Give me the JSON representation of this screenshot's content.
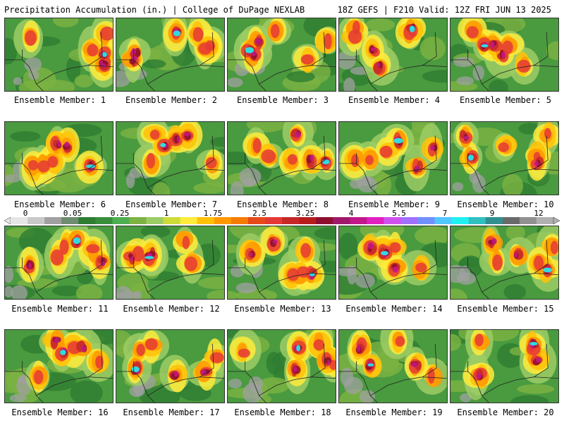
{
  "header": {
    "left": "Precipitation Accumulation (in.) | College of DuPage NEXLAB",
    "right": "18Z GEFS | F210 Valid: 12Z FRI JUN 13 2025"
  },
  "members": [
    {
      "label": "Ensemble Member: 1"
    },
    {
      "label": "Ensemble Member: 2"
    },
    {
      "label": "Ensemble Member: 3"
    },
    {
      "label": "Ensemble Member: 4"
    },
    {
      "label": "Ensemble Member: 5"
    },
    {
      "label": "Ensemble Member: 6"
    },
    {
      "label": "Ensemble Member: 7"
    },
    {
      "label": "Ensemble Member: 8"
    },
    {
      "label": "Ensemble Member: 9"
    },
    {
      "label": "Ensemble Member: 10"
    },
    {
      "label": "Ensemble Member: 11"
    },
    {
      "label": "Ensemble Member: 12"
    },
    {
      "label": "Ensemble Member: 13"
    },
    {
      "label": "Ensemble Member: 14"
    },
    {
      "label": "Ensemble Member: 15"
    },
    {
      "label": "Ensemble Member: 16"
    },
    {
      "label": "Ensemble Member: 17"
    },
    {
      "label": "Ensemble Member: 18"
    },
    {
      "label": "Ensemble Member: 19"
    },
    {
      "label": "Ensemble Member: 20"
    }
  ],
  "colorbar": {
    "labels": [
      "0",
      "0.05",
      "0.25",
      "1",
      "1.75",
      "2.5",
      "3.25",
      "4",
      "5.5",
      "7",
      "9",
      "12"
    ],
    "colors": [
      "#e6e6e6",
      "#c8c8c8",
      "#a0a0a0",
      "#6e8c6e",
      "#2e7d32",
      "#388e3c",
      "#4caf50",
      "#7cb342",
      "#9ccc65",
      "#cddc39",
      "#ffeb3b",
      "#ffc107",
      "#ff9800",
      "#f57c00",
      "#e64a19",
      "#e53935",
      "#c62828",
      "#b71c1c",
      "#8e0e2e",
      "#a0186a",
      "#c2188a",
      "#e020c0",
      "#d050f0",
      "#a070ff",
      "#7090ff",
      "#50c8ff",
      "#20f0f0",
      "#30c0c0",
      "#309090",
      "#6a6a6a",
      "#909090",
      "#b0b0b0"
    ]
  }
}
